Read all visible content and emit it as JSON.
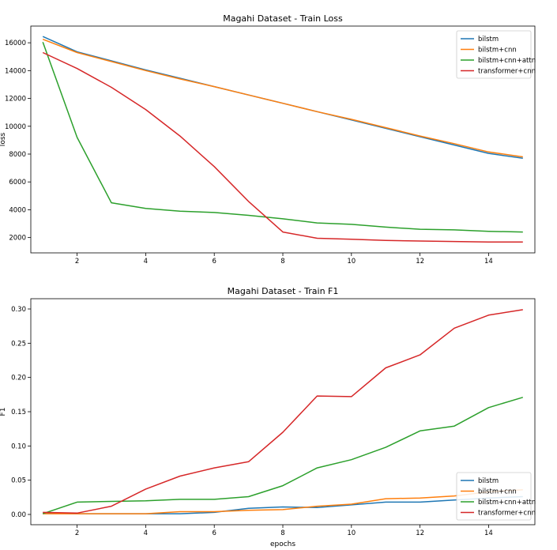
{
  "chart_data": [
    {
      "type": "line",
      "title": "Magahi Dataset - Train Loss",
      "xlabel": "",
      "ylabel": "loss",
      "x": [
        1,
        2,
        3,
        4,
        5,
        6,
        7,
        8,
        9,
        10,
        11,
        12,
        13,
        14,
        15
      ],
      "xlim": [
        0.65,
        15.35
      ],
      "ylim": [
        900,
        17200
      ],
      "xticks": [
        2,
        4,
        6,
        8,
        10,
        12,
        14
      ],
      "yticks": [
        2000,
        4000,
        6000,
        8000,
        10000,
        12000,
        14000,
        16000
      ],
      "legend_position": "top-right",
      "series": [
        {
          "name": "bilstm",
          "color": "#1f77b4",
          "values": [
            16450,
            15350,
            14700,
            14050,
            13450,
            12850,
            12250,
            11650,
            11050,
            10450,
            9850,
            9250,
            8650,
            8050,
            7700
          ]
        },
        {
          "name": "bilstm+cnn",
          "color": "#ff7f0e",
          "values": [
            16250,
            15300,
            14650,
            14000,
            13400,
            12850,
            12250,
            11650,
            11050,
            10500,
            9900,
            9300,
            8750,
            8150,
            7800
          ]
        },
        {
          "name": "bilstm+cnn+attn",
          "color": "#2ca02c",
          "values": [
            16050,
            9200,
            4500,
            4100,
            3900,
            3800,
            3600,
            3350,
            3050,
            2950,
            2750,
            2600,
            2550,
            2450,
            2400
          ]
        },
        {
          "name": "transformer+cnn",
          "color": "#d62728",
          "values": [
            15300,
            14150,
            12800,
            11200,
            9300,
            7100,
            4600,
            2400,
            1950,
            1880,
            1800,
            1750,
            1720,
            1680,
            1680
          ]
        }
      ]
    },
    {
      "type": "line",
      "title": "Magahi Dataset - Train F1",
      "xlabel": "epochs",
      "ylabel": "F1",
      "x": [
        1,
        2,
        3,
        4,
        5,
        6,
        7,
        8,
        9,
        10,
        11,
        12,
        13,
        14,
        15
      ],
      "xlim": [
        0.65,
        15.35
      ],
      "ylim": [
        -0.015,
        0.315
      ],
      "xticks": [
        2,
        4,
        6,
        8,
        10,
        12,
        14
      ],
      "yticks": [
        "0.00",
        "0.05",
        "0.10",
        "0.15",
        "0.20",
        "0.25",
        "0.30"
      ],
      "legend_position": "bottom-right",
      "series": [
        {
          "name": "bilstm",
          "color": "#1f77b4",
          "values": [
            0.002,
            0.001,
            0.001,
            0.001,
            0.001,
            0.003,
            0.009,
            0.011,
            0.01,
            0.014,
            0.018,
            0.018,
            0.021,
            0.024,
            0.026
          ]
        },
        {
          "name": "bilstm+cnn",
          "color": "#ff7f0e",
          "values": [
            0.001,
            0.001,
            0.001,
            0.001,
            0.004,
            0.004,
            0.006,
            0.007,
            0.012,
            0.015,
            0.023,
            0.024,
            0.027,
            0.033,
            0.036
          ]
        },
        {
          "name": "bilstm+cnn+attn",
          "color": "#2ca02c",
          "values": [
            0.001,
            0.018,
            0.019,
            0.02,
            0.022,
            0.022,
            0.026,
            0.042,
            0.068,
            0.08,
            0.098,
            0.122,
            0.129,
            0.156,
            0.171
          ]
        },
        {
          "name": "transformer+cnn",
          "color": "#d62728",
          "values": [
            0.003,
            0.002,
            0.012,
            0.037,
            0.056,
            0.068,
            0.077,
            0.12,
            0.173,
            0.172,
            0.214,
            0.233,
            0.272,
            0.291,
            0.299
          ]
        }
      ]
    }
  ]
}
